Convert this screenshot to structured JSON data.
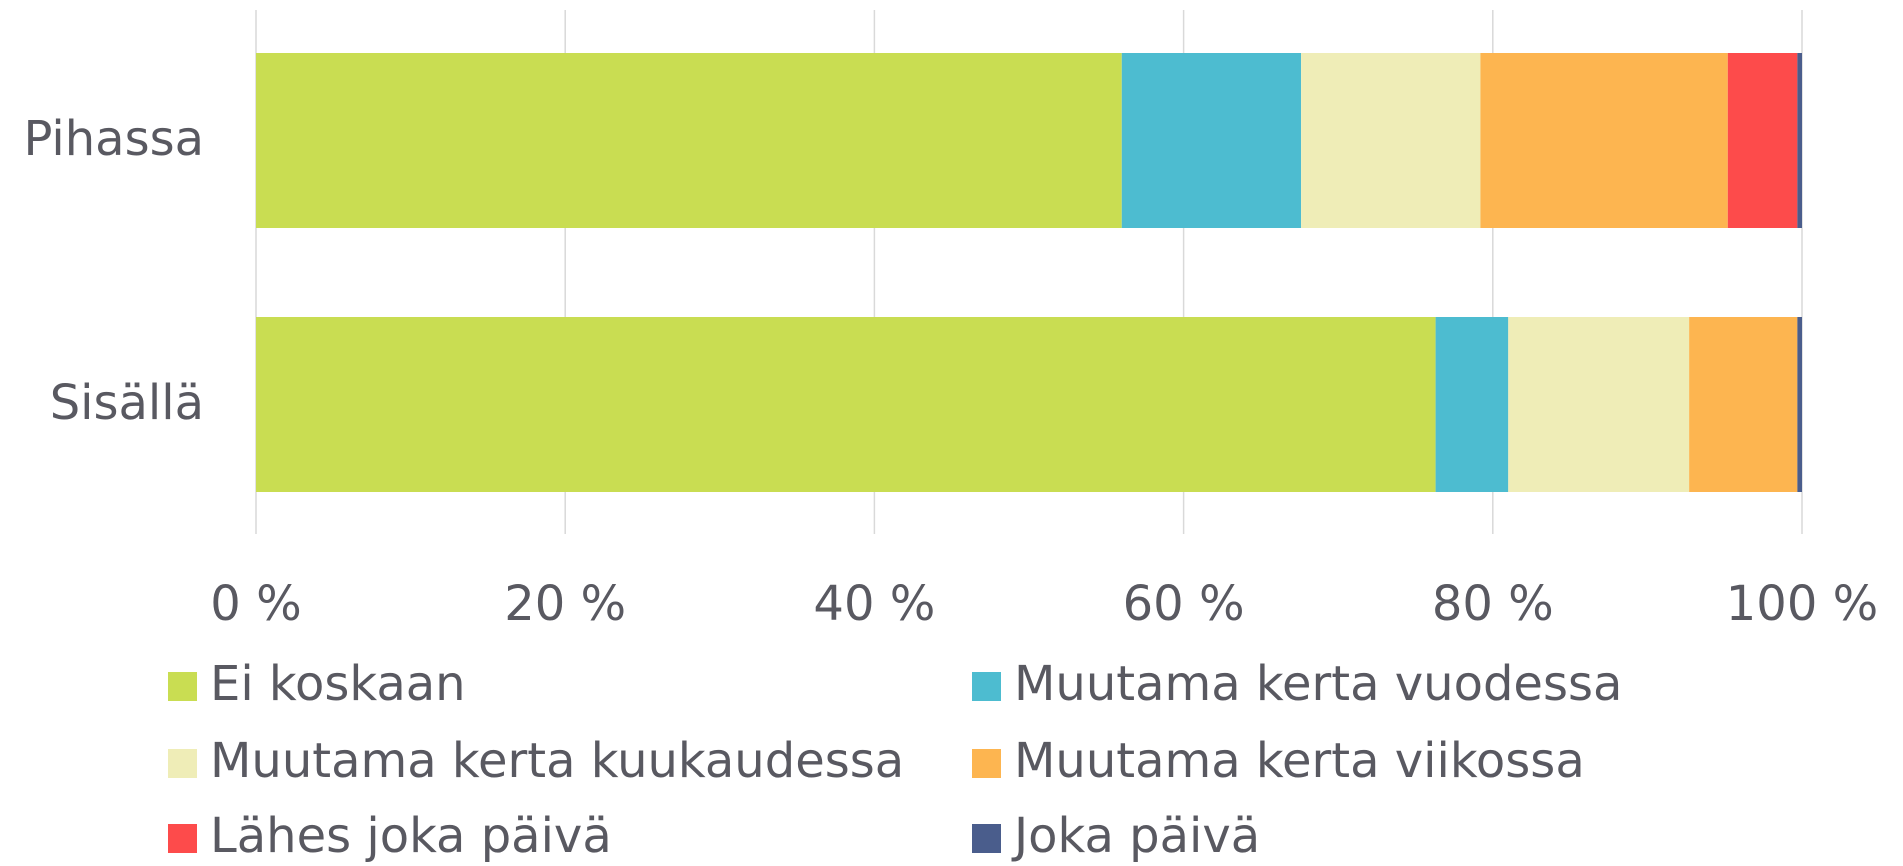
{
  "chart_data": {
    "type": "stacked-barh",
    "categories": [
      "Pihassa",
      "Sisällä"
    ],
    "series": [
      {
        "name": "Ei koskaan",
        "color": "#c9dd52",
        "values": [
          56.0,
          76.3
        ]
      },
      {
        "name": "Muutama kerta vuodessa",
        "color": "#4dbcd0",
        "values": [
          11.6,
          4.7
        ]
      },
      {
        "name": "Muutama kerta kuukaudessa",
        "color": "#efedb7",
        "values": [
          11.6,
          11.7
        ]
      },
      {
        "name": "Muutama kerta viikossa",
        "color": "#fdb550",
        "values": [
          16.0,
          7.0
        ]
      },
      {
        "name": "Lähes joka päivä",
        "color": "#fd4b4b",
        "values": [
          4.5,
          0
        ]
      },
      {
        "name": "Joka päivä",
        "color": "#4a5d8c",
        "values": [
          0.3,
          0.3
        ]
      }
    ],
    "xlim": [
      0,
      100
    ],
    "xticks": [
      {
        "value": 0,
        "label": "0 %"
      },
      {
        "value": 20,
        "label": "20 %"
      },
      {
        "value": 40,
        "label": "40 %"
      },
      {
        "value": 60,
        "label": "60 %"
      },
      {
        "value": 80,
        "label": "80 %"
      },
      {
        "value": 100,
        "label": "100 %"
      }
    ],
    "grid": true
  }
}
